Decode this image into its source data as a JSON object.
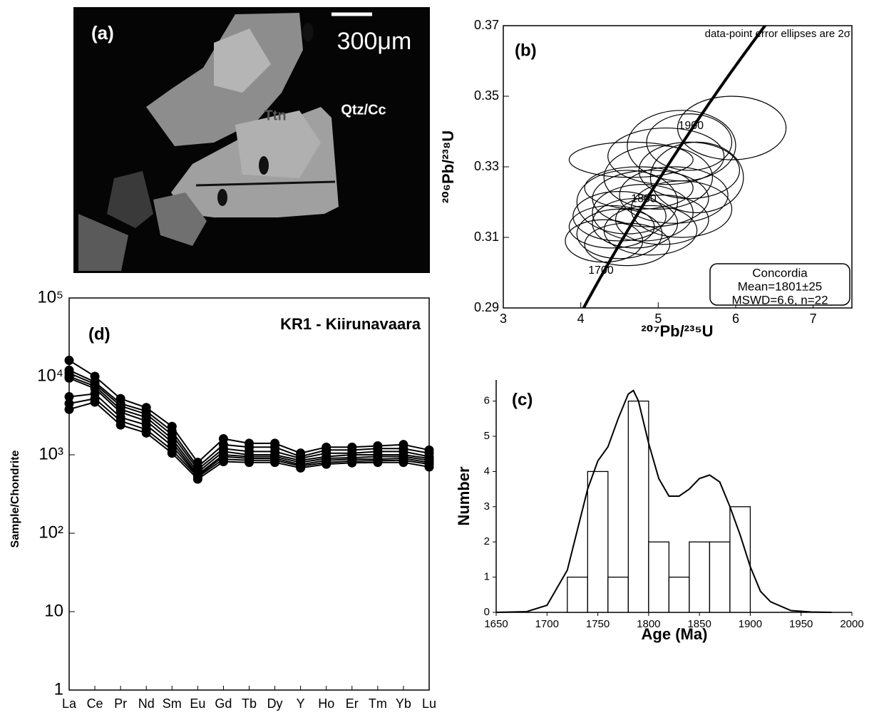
{
  "image_panel": {
    "label": "(a)",
    "scale_bar": "300μm",
    "labels": [
      "Qtz/Cc",
      "Ttn"
    ]
  },
  "chart_data": [
    {
      "type": "ellipse",
      "label": "(b)",
      "note": "data-point error ellipses are 2σ",
      "xlabel": "²⁰⁷Pb/²³⁵U",
      "ylabel": "²⁰⁶Pb/²³⁸U",
      "xlim": [
        3,
        7.5
      ],
      "ylim": [
        0.29,
        0.37
      ],
      "xticks": [
        3,
        4,
        5,
        6,
        7
      ],
      "yticks": [
        0.29,
        0.31,
        0.33,
        0.35,
        0.37
      ],
      "concordia_ages": [
        1700,
        1800,
        1900
      ],
      "annotations": [
        "Concordia",
        "Mean=1801±25",
        "MSWD=6.6, n=22"
      ],
      "ellipses": {
        "x": [
          5.95,
          5.3,
          5.1,
          4.65,
          5.4,
          5.0,
          5.5,
          4.75,
          5.2,
          4.9,
          4.6,
          5.3,
          4.8,
          4.5,
          5.05,
          4.7,
          4.4,
          4.9,
          4.5,
          4.3,
          4.6,
          5.4
        ],
        "y": [
          0.341,
          0.336,
          0.333,
          0.332,
          0.329,
          0.327,
          0.327,
          0.324,
          0.322,
          0.321,
          0.32,
          0.318,
          0.317,
          0.316,
          0.315,
          0.314,
          0.313,
          0.312,
          0.311,
          0.309,
          0.308,
          0.337
        ],
        "x_err": [
          0.7,
          0.7,
          0.75,
          0.8,
          0.65,
          0.7,
          0.6,
          0.7,
          0.7,
          0.75,
          0.65,
          0.65,
          0.65,
          0.6,
          0.6,
          0.55,
          0.55,
          0.6,
          0.55,
          0.5,
          0.55,
          0.55
        ],
        "y_err": [
          0.009,
          0.01,
          0.008,
          0.005,
          0.008,
          0.009,
          0.01,
          0.006,
          0.008,
          0.008,
          0.009,
          0.008,
          0.008,
          0.007,
          0.007,
          0.007,
          0.006,
          0.007,
          0.007,
          0.006,
          0.006,
          0.008
        ]
      }
    },
    {
      "type": "histogram",
      "label": "(c)",
      "xlabel": "Age (Ma)",
      "ylabel": "Number",
      "bins": [
        1720,
        1740,
        1760,
        1780,
        1800,
        1820,
        1840,
        1860,
        1880,
        1900
      ],
      "counts": [
        1,
        4,
        1,
        6,
        2,
        1,
        2,
        2,
        3
      ],
      "curve": {
        "x": [
          1650,
          1680,
          1700,
          1720,
          1740,
          1750,
          1760,
          1770,
          1780,
          1785,
          1790,
          1800,
          1810,
          1820,
          1830,
          1840,
          1850,
          1860,
          1870,
          1880,
          1890,
          1900,
          1910,
          1920,
          1940,
          1960,
          1980
        ],
        "y": [
          0,
          0.02,
          0.2,
          1.2,
          3.5,
          4.3,
          4.7,
          5.5,
          6.2,
          6.3,
          6.0,
          4.8,
          3.8,
          3.3,
          3.3,
          3.5,
          3.8,
          3.9,
          3.7,
          3.0,
          2.2,
          1.3,
          0.6,
          0.3,
          0.05,
          0.01,
          0
        ]
      },
      "xlim": [
        1650,
        2000
      ],
      "ylim": [
        0,
        6.6
      ],
      "xticks": [
        1650,
        1700,
        1750,
        1800,
        1850,
        1900,
        1950,
        2000
      ],
      "yticks": [
        0,
        1,
        2,
        3,
        4,
        5,
        6
      ]
    },
    {
      "type": "line",
      "label": "(d)",
      "title": "KR1 - Kiirunavaara",
      "ylabel": "Sample/Chondrite",
      "log": true,
      "color": "#000000",
      "categories": [
        "La",
        "Ce",
        "Pr",
        "Nd",
        "Sm",
        "Eu",
        "Gd",
        "Tb",
        "Dy",
        "Y",
        "Ho",
        "Er",
        "Tm",
        "Yb",
        "Lu"
      ],
      "ylim": [
        1,
        100000
      ],
      "yticks": [
        1,
        10,
        {
          "value": 100,
          "label": "10²"
        },
        {
          "value": 1000,
          "label": "10³"
        },
        {
          "value": 10000,
          "label": "10⁴"
        },
        {
          "value": 100000,
          "label": "10⁵"
        }
      ],
      "series": [
        {
          "values": [
            16000,
            10000,
            5200,
            4000,
            2300,
            800,
            1600,
            1400,
            1400,
            1050,
            1250,
            1250,
            1300,
            1350,
            1150
          ]
        },
        {
          "values": [
            12000,
            8500,
            4500,
            3600,
            2000,
            700,
            1350,
            1250,
            1250,
            950,
            1150,
            1150,
            1200,
            1200,
            1050
          ]
        },
        {
          "values": [
            11000,
            8000,
            4200,
            3300,
            1800,
            650,
            1200,
            1100,
            1100,
            900,
            1050,
            1050,
            1100,
            1100,
            950
          ]
        },
        {
          "values": [
            10000,
            7500,
            3800,
            3000,
            1600,
            600,
            1100,
            1000,
            1000,
            850,
            950,
            1000,
            1000,
            1000,
            900
          ]
        },
        {
          "values": [
            9500,
            7000,
            3500,
            2700,
            1450,
            560,
            1000,
            950,
            950,
            800,
            900,
            920,
            950,
            950,
            850
          ]
        },
        {
          "values": [
            5500,
            6000,
            3000,
            2400,
            1300,
            540,
            950,
            900,
            900,
            750,
            850,
            880,
            880,
            900,
            800
          ]
        },
        {
          "values": [
            4500,
            5200,
            2700,
            2100,
            1150,
            520,
            880,
            850,
            850,
            720,
            800,
            830,
            840,
            850,
            760
          ]
        },
        {
          "values": [
            3800,
            4700,
            2400,
            1900,
            1050,
            490,
            820,
            800,
            800,
            680,
            760,
            790,
            800,
            800,
            700
          ]
        }
      ]
    }
  ]
}
